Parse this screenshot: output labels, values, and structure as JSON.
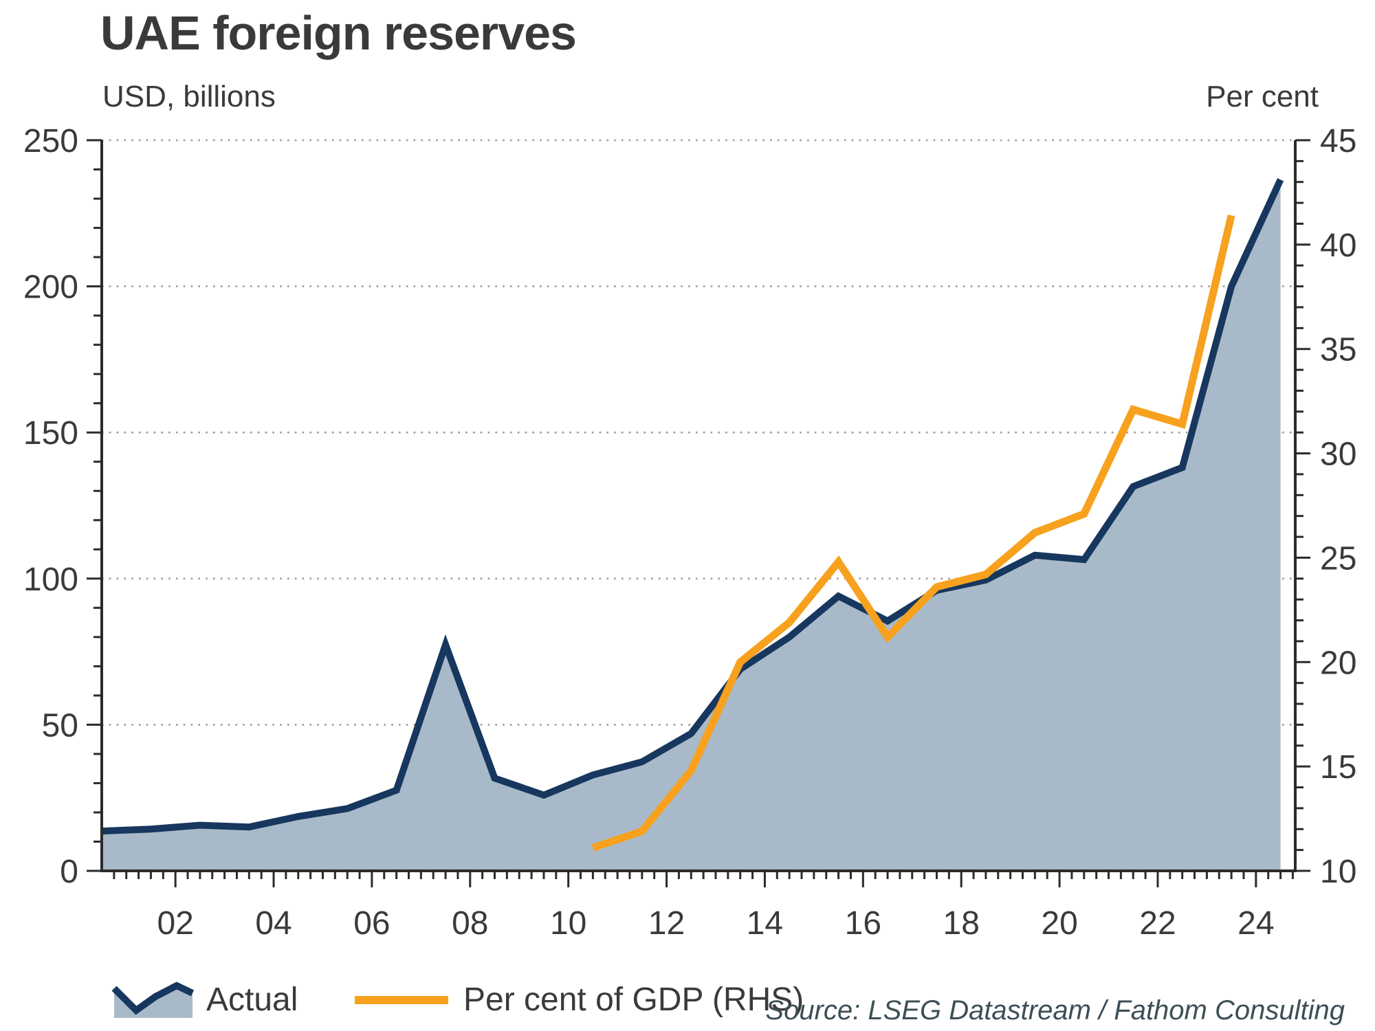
{
  "title": "UAE foreign reserves",
  "axis_titles": {
    "left": "USD, billions",
    "right": "Per cent"
  },
  "legend": {
    "actual_label": "Actual",
    "gdp_label": "Per cent of GDP (RHS)"
  },
  "source": "Source: LSEG Datastream / Fathom Consulting",
  "colors": {
    "actual_line": "#17375e",
    "actual_fill": "#a8bac9",
    "gdp_line": "#f7a11e",
    "gridline": "#9a9a9a",
    "axis": "#2b2b2b",
    "tick_text": "#3a3a3a",
    "source_text": "#3d4f55"
  },
  "chart_data": {
    "type": "area",
    "title": "UAE foreign reserves",
    "xlabel": "",
    "ylabel_left": "USD, billions",
    "ylabel_right": "Per cent",
    "legend_position": "bottom-left",
    "grid": "dotted-horizontal",
    "series": [
      {
        "name": "Actual",
        "axis": "left",
        "style": "area",
        "x": [
          2000.5,
          2001.5,
          2002.5,
          2003.5,
          2004.5,
          2005.5,
          2006.5,
          2007.5,
          2008.5,
          2009.5,
          2010.5,
          2011.5,
          2012.5,
          2013.5,
          2014.5,
          2015.5,
          2016.5,
          2017.5,
          2018.5,
          2019.5,
          2020.5,
          2021.5,
          2022.5,
          2023.5,
          2024.5
        ],
        "values": [
          13.6,
          14.3,
          15.6,
          15.0,
          18.6,
          21.3,
          27.6,
          77.4,
          31.7,
          25.9,
          32.8,
          37.3,
          47.0,
          69.0,
          80.0,
          94.0,
          85.5,
          96.0,
          99.5,
          108.0,
          106.5,
          131.5,
          138.0,
          200.0,
          236.5
        ]
      },
      {
        "name": "Per cent of GDP (RHS)",
        "axis": "right",
        "style": "line",
        "x": [
          2010.5,
          2011.5,
          2012.5,
          2013.5,
          2014.5,
          2015.5,
          2016.5,
          2017.5,
          2018.5,
          2019.5,
          2020.5,
          2021.5,
          2022.5,
          2023.5
        ],
        "values": [
          11.1,
          11.9,
          14.8,
          20.0,
          21.9,
          24.8,
          21.2,
          23.6,
          24.2,
          26.2,
          27.1,
          32.1,
          31.4,
          41.4
        ]
      }
    ],
    "x_axis": {
      "range": [
        2000.5,
        2024.8
      ],
      "major_tick_values": [
        2002,
        2004,
        2006,
        2008,
        2010,
        2012,
        2014,
        2016,
        2018,
        2020,
        2022,
        2024
      ],
      "major_tick_labels": [
        "02",
        "04",
        "06",
        "08",
        "10",
        "12",
        "14",
        "16",
        "18",
        "20",
        "22",
        "24"
      ],
      "minor_tick_step": 0.25
    },
    "left_axis": {
      "range": [
        0,
        250
      ],
      "tick_values": [
        0,
        50,
        100,
        150,
        200,
        250
      ],
      "tick_labels": [
        "0",
        "50",
        "100",
        "150",
        "200",
        "250"
      ],
      "minor_tick_step": 10
    },
    "right_axis": {
      "range": [
        10,
        45
      ],
      "tick_values": [
        10,
        15,
        20,
        25,
        30,
        35,
        40,
        45
      ],
      "tick_labels": [
        "10",
        "15",
        "20",
        "25",
        "30",
        "35",
        "40",
        "45"
      ],
      "minor_tick_step": 1
    },
    "gridlines": {
      "left_values": [
        50,
        100,
        150,
        200,
        250
      ],
      "style": "dotted"
    }
  }
}
